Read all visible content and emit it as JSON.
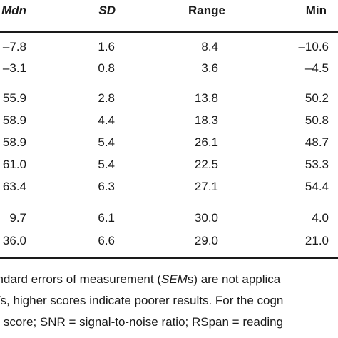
{
  "headers": {
    "mdn": "Mdn",
    "sd": "SD",
    "range": "Range",
    "min": "Min"
  },
  "rows": [
    {
      "mdn": "–7.8",
      "sd": "1.6",
      "range": "8.4",
      "min": "–10.6"
    },
    {
      "mdn": "–3.1",
      "sd": "0.8",
      "range": "3.6",
      "min": "–4.5"
    },
    {
      "mdn": "55.9",
      "sd": "2.8",
      "range": "13.8",
      "min": "50.2"
    },
    {
      "mdn": "58.9",
      "sd": "4.4",
      "range": "18.3",
      "min": "50.8"
    },
    {
      "mdn": "58.9",
      "sd": "5.4",
      "range": "26.1",
      "min": "48.7"
    },
    {
      "mdn": "61.0",
      "sd": "5.4",
      "range": "22.5",
      "min": "53.3"
    },
    {
      "mdn": "63.4",
      "sd": "6.3",
      "range": "27.1",
      "min": "54.4"
    },
    {
      "mdn": "9.7",
      "sd": "6.1",
      "range": "30.0",
      "min": "4.0"
    },
    {
      "mdn": "36.0",
      "sd": "6.6",
      "range": "29.0",
      "min": "21.0"
    }
  ],
  "notes": {
    "line1_a": "andard errors of measurement (",
    "line1_sem": "SEM",
    "line1_b": "s) are not applica",
    "line2": "Ts, higher scores indicate poorer results. For the cogn",
    "line3": "m score; SNR = signal-to-noise ratio; RSpan = reading"
  }
}
